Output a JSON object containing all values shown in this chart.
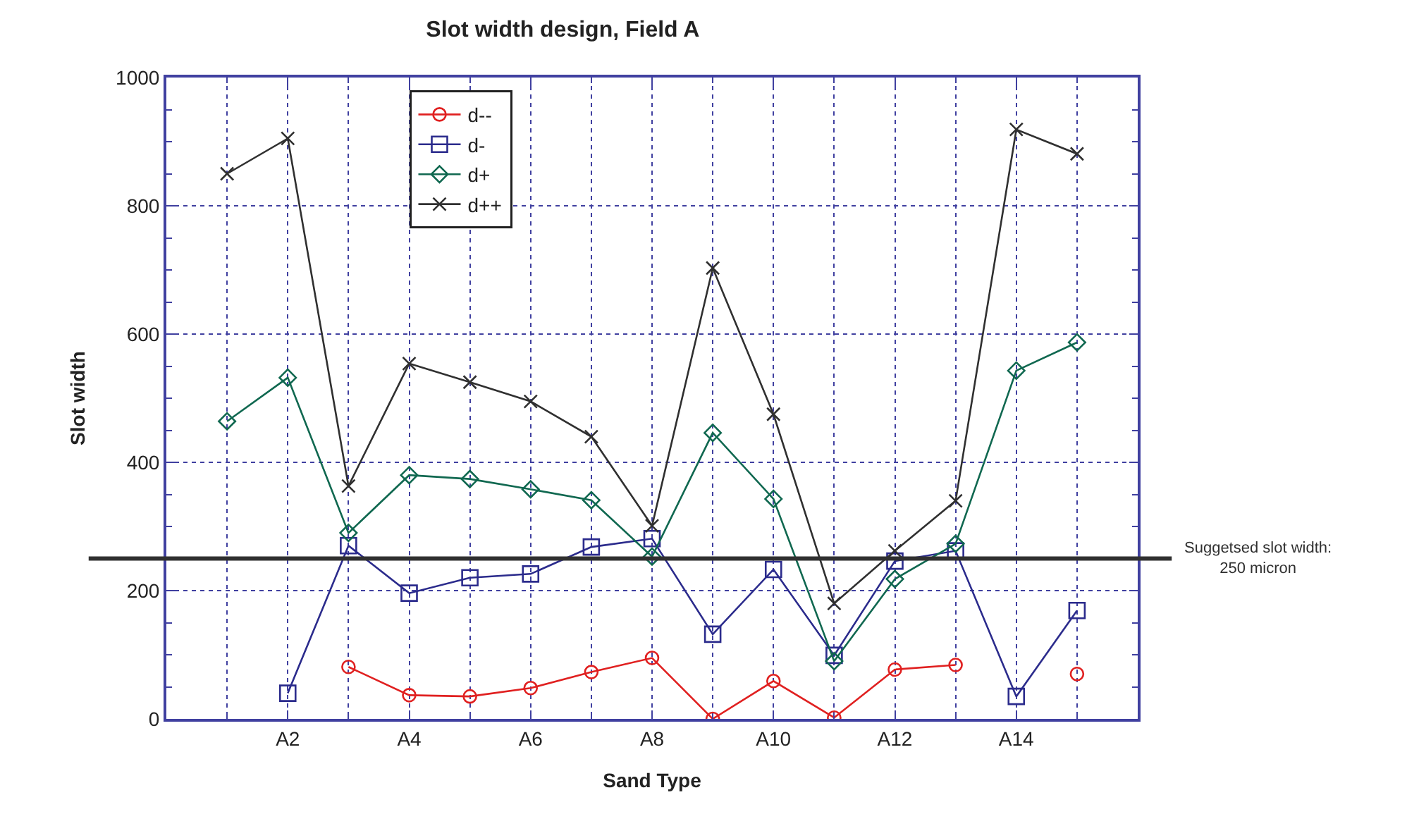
{
  "chart_data": {
    "type": "line",
    "title": "Slot width design, Field A",
    "xlabel": "Sand Type",
    "ylabel": "Slot width",
    "categories": [
      null,
      "A2",
      null,
      "A4",
      null,
      "A6",
      null,
      "A8",
      null,
      "A10",
      null,
      "A12",
      null,
      "A14",
      null
    ],
    "series": [
      {
        "name": "d--",
        "color": "#e02020",
        "marker": "circle",
        "values": [
          null,
          null,
          81,
          37,
          35,
          48,
          73,
          95,
          0,
          59,
          2,
          77,
          84,
          null,
          70
        ]
      },
      {
        "name": "d-",
        "color": "#2b2b8c",
        "marker": "square",
        "values": [
          null,
          40,
          270,
          196,
          220,
          226,
          268,
          281,
          132,
          233,
          99,
          246,
          262,
          35,
          169
        ]
      },
      {
        "name": "d+",
        "color": "#106850",
        "marker": "diamond",
        "values": [
          464,
          532,
          290,
          380,
          374,
          358,
          341,
          253,
          446,
          343,
          90,
          218,
          273,
          543,
          587
        ]
      },
      {
        "name": "d++",
        "color": "#303030",
        "marker": "cross",
        "values": [
          850,
          905,
          363,
          554,
          525,
          495,
          440,
          301,
          703,
          475,
          180,
          262,
          340,
          919,
          881
        ]
      }
    ],
    "ylim": [
      0,
      1000
    ],
    "yticks": [
      0,
      200,
      400,
      600,
      800,
      1000
    ],
    "ref_lines": [
      {
        "axis": "y",
        "value": 250,
        "label": "Suggetsed slot width:\n250 micron",
        "color": "#303030"
      }
    ],
    "grid": true,
    "legend": "top left",
    "line_style": "solid"
  }
}
